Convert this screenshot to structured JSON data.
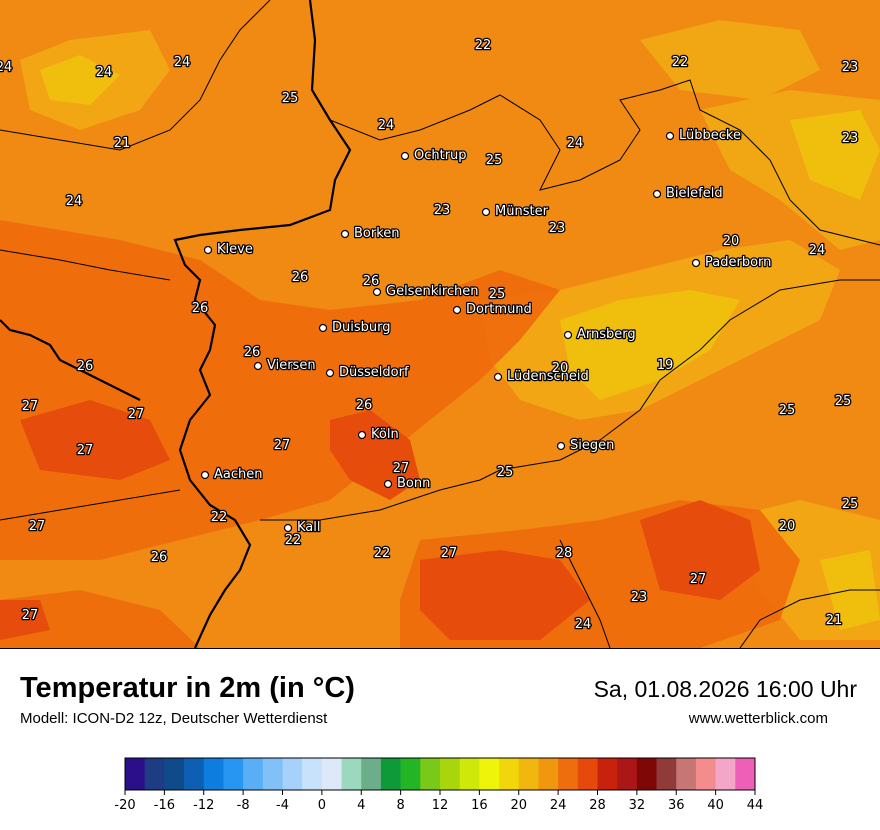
{
  "title": "Temperatur in 2m (in °C)",
  "subtitle": "Modell: ICON-D2 12z, Deutscher Wetterdienst",
  "datetime": "Sa, 01.08.2026 16:00 Uhr",
  "website": "www.wetterblick.com",
  "cities": [
    {
      "name": "Lübbecke"
    },
    {
      "name": "Ochtrup"
    },
    {
      "name": "Bielefeld"
    },
    {
      "name": "Münster"
    },
    {
      "name": "Borken"
    },
    {
      "name": "Kleve"
    },
    {
      "name": "Paderborn"
    },
    {
      "name": "Gelsenkirchen"
    },
    {
      "name": "Dortmund"
    },
    {
      "name": "Duisburg"
    },
    {
      "name": "Arnsberg"
    },
    {
      "name": "Viersen"
    },
    {
      "name": "Düsseldorf"
    },
    {
      "name": "Lüdenscheid"
    },
    {
      "name": "Köln"
    },
    {
      "name": "Siegen"
    },
    {
      "name": "Aachen"
    },
    {
      "name": "Bonn"
    },
    {
      "name": "Kall"
    }
  ],
  "temperatures": [
    {
      "value": "22"
    },
    {
      "value": "24"
    },
    {
      "value": "24"
    },
    {
      "value": "24"
    },
    {
      "value": "22"
    },
    {
      "value": "23"
    },
    {
      "value": "25"
    },
    {
      "value": "24"
    },
    {
      "value": "21"
    },
    {
      "value": "24"
    },
    {
      "value": "25"
    },
    {
      "value": "23"
    },
    {
      "value": "24"
    },
    {
      "value": "23"
    },
    {
      "value": "23"
    },
    {
      "value": "20"
    },
    {
      "value": "24"
    },
    {
      "value": "26"
    },
    {
      "value": "26"
    },
    {
      "value": "25"
    },
    {
      "value": "26"
    },
    {
      "value": "26"
    },
    {
      "value": "26"
    },
    {
      "value": "20"
    },
    {
      "value": "19"
    },
    {
      "value": "27"
    },
    {
      "value": "27"
    },
    {
      "value": "26"
    },
    {
      "value": "25"
    },
    {
      "value": "25"
    },
    {
      "value": "27"
    },
    {
      "value": "27"
    },
    {
      "value": "27"
    },
    {
      "value": "25"
    },
    {
      "value": "27"
    },
    {
      "value": "22"
    },
    {
      "value": "25"
    },
    {
      "value": "20"
    },
    {
      "value": "22"
    },
    {
      "value": "22"
    },
    {
      "value": "27"
    },
    {
      "value": "28"
    },
    {
      "value": "26"
    },
    {
      "value": "27"
    },
    {
      "value": "23"
    },
    {
      "value": "27"
    },
    {
      "value": "24"
    },
    {
      "value": "21"
    }
  ],
  "legend": {
    "colors": [
      "#2b0f8a",
      "#1d3c84",
      "#0f4a8a",
      "#0c5fb2",
      "#0d7ee0",
      "#2696f2",
      "#5aaef6",
      "#82c0f8",
      "#a6d1fa",
      "#c8e2fc",
      "#dde9f8",
      "#9bd8bd",
      "#6cae8a",
      "#0f9a3a",
      "#24b524",
      "#79c81a",
      "#a8d50c",
      "#cfe80a",
      "#eef40a",
      "#f1d60c",
      "#f1b70f",
      "#f0960f",
      "#ee6d0c",
      "#e54a0c",
      "#c8210c",
      "#aa1716",
      "#7f0706",
      "#913a3a",
      "#c77676",
      "#f38c8c",
      "#f4a6c8",
      "#ee5fb8"
    ],
    "ticks": [
      "-20",
      "-16",
      "-12",
      "-8",
      "-4",
      "0",
      "4",
      "8",
      "12",
      "16",
      "20",
      "24",
      "28",
      "32",
      "36",
      "40",
      "44"
    ]
  }
}
